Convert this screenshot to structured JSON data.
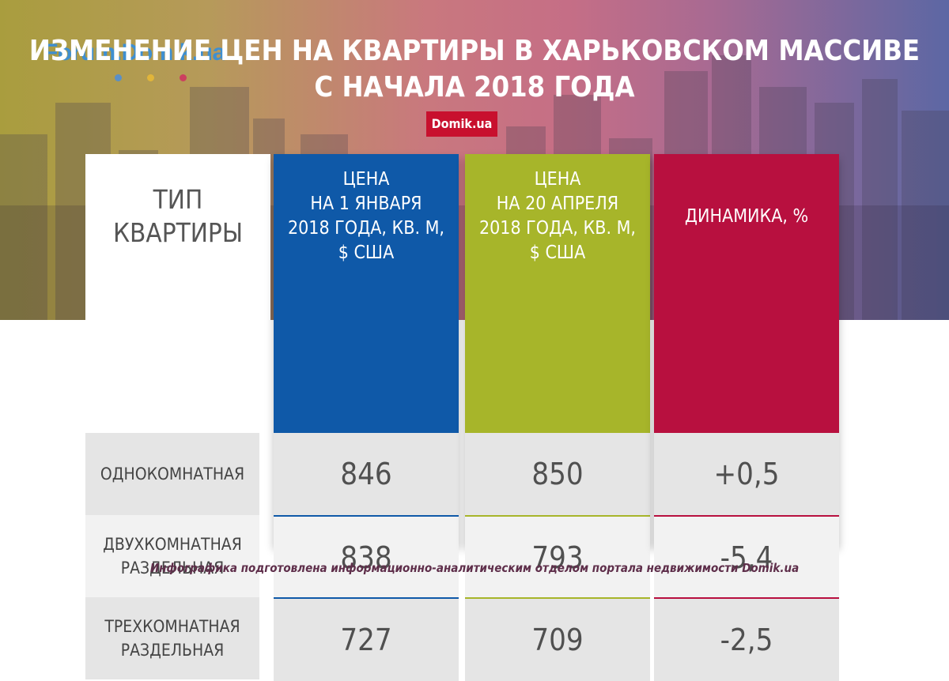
{
  "watermark": "Forum.Domik.ua",
  "dots_colors": [
    "#5a8fc6",
    "#e1b53a",
    "#cc3f5f",
    "#c44c5e"
  ],
  "title": {
    "line1": "ИЗМЕНЕНИЕ ЦЕН НА КВАРТИРЫ В ХАРЬКОВСКОМ МАССИВЕ",
    "line2": "С НАЧАЛА 2018 ГОДА"
  },
  "brand_badge": "Domik.ua",
  "colors": {
    "jan": "#0f59a8",
    "apr": "#a7b52a",
    "dyn": "#b8103f",
    "brand": "#c8102e"
  },
  "chart_data": {
    "type": "table",
    "columns": [
      "ТИП\nКВАРТИРЫ",
      "ЦЕНА\nНА 1 ЯНВАРЯ\n2018 ГОДА, КВ. М,\n$ США",
      "ЦЕНА\nНА 20 АПРЕЛЯ\n2018 ГОДА, КВ. М,\n$ США",
      "ДИНАМИКА, %"
    ],
    "rows": [
      {
        "type": "ОДНОКОМНАТНАЯ",
        "jan": "846",
        "apr": "850",
        "dyn": "+0,5"
      },
      {
        "type": "ДВУХКОМНАТНАЯ\nРАЗДЕЛЬНАЯ",
        "jan": "838",
        "apr": "793",
        "dyn": "-5,4"
      },
      {
        "type": "ТРЕХКОМНАТНАЯ\nРАЗДЕЛЬНАЯ",
        "jan": "727",
        "apr": "709",
        "dyn": "-2,5"
      }
    ]
  },
  "footer": "Инфографика подготовлена информационно-аналитическим отделом портала недвижимости Domik.ua"
}
